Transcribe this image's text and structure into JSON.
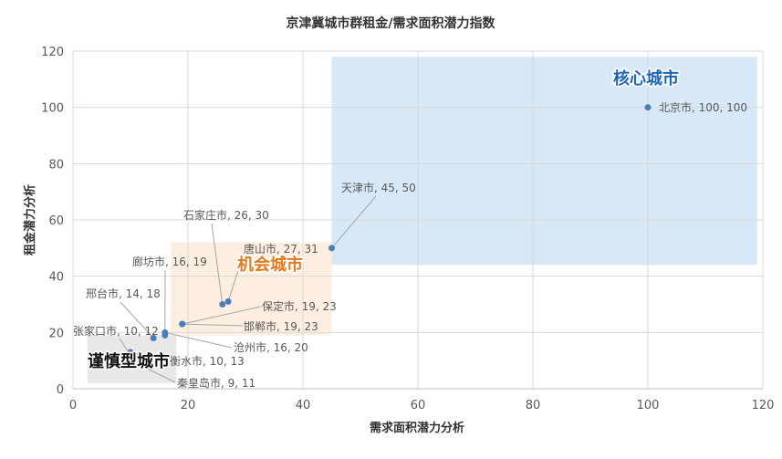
{
  "chart_data": {
    "type": "scatter",
    "title": "京津冀城市群租金/需求面积潜力指数",
    "xlabel": "需求面积潜力分析",
    "ylabel": "租金潜力分析",
    "xlim": [
      0,
      120
    ],
    "ylim": [
      0,
      120
    ],
    "xticks": [
      0,
      20,
      40,
      60,
      80,
      100,
      120
    ],
    "yticks": [
      0,
      20,
      40,
      60,
      80,
      100,
      120
    ],
    "grid": true,
    "legend": "none",
    "marker_color": "#4a7ebb",
    "points": [
      {
        "label": "北京市, 100, 100",
        "x": 100,
        "y": 100
      },
      {
        "label": "天津市, 45, 50",
        "x": 45,
        "y": 50
      },
      {
        "label": "石家庄市, 26, 30",
        "x": 26,
        "y": 30
      },
      {
        "label": "唐山市, 27, 31",
        "x": 27,
        "y": 31
      },
      {
        "label": "廊坊市, 16, 19",
        "x": 16,
        "y": 19
      },
      {
        "label": "邢台市, 14, 18",
        "x": 14,
        "y": 18
      },
      {
        "label": "保定市, 19, 23",
        "x": 19,
        "y": 23
      },
      {
        "label": "邯郸市, 19, 23",
        "x": 19,
        "y": 23
      },
      {
        "label": "张家口市, 10, 12",
        "x": 10,
        "y": 12
      },
      {
        "label": "沧州市, 16, 20",
        "x": 16,
        "y": 20
      },
      {
        "label": "衡水市, 10, 13",
        "x": 10,
        "y": 13
      },
      {
        "label": "秦皇岛市, 9, 11",
        "x": 9,
        "y": 11
      }
    ],
    "zones": [
      {
        "name": "核心城市",
        "x": [
          45,
          119
        ],
        "y": [
          44,
          118
        ],
        "fill": "#d7e8f6",
        "text_color": "#1f66b3"
      },
      {
        "name": "机会城市",
        "x": [
          17,
          45
        ],
        "y": [
          19,
          52
        ],
        "fill": "#fdeedf",
        "text_color": "#e07a1f"
      },
      {
        "name": "谨慎型城市",
        "x": [
          2.5,
          18
        ],
        "y": [
          2,
          19
        ],
        "fill": "#e8e8e8",
        "text_color": "#111111"
      }
    ]
  }
}
